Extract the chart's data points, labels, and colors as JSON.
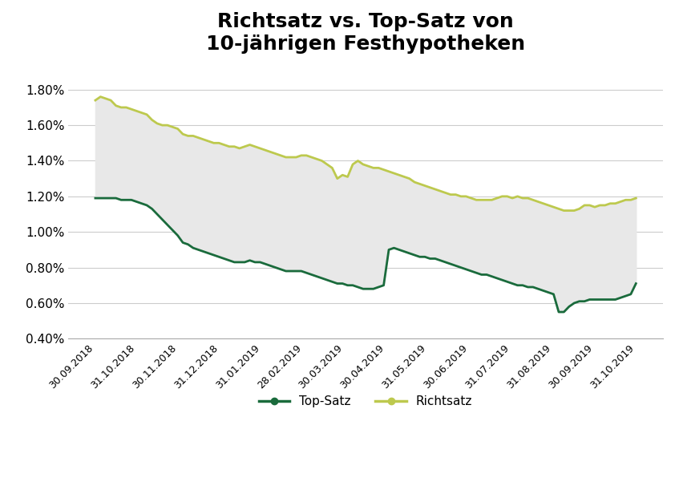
{
  "title": "Richtsatz vs. Top-Satz von\n10-jährigen Festhypotheken",
  "ylim": [
    0.004,
    0.019
  ],
  "yticks": [
    0.004,
    0.006,
    0.008,
    0.01,
    0.012,
    0.014,
    0.016,
    0.018
  ],
  "ytick_labels": [
    "0.40%",
    "0.60%",
    "0.80%",
    "1.00%",
    "1.20%",
    "1.40%",
    "1.60%",
    "1.80%"
  ],
  "xtick_labels": [
    "30.09.2018",
    "31.10.2018",
    "30.11.2018",
    "31.12.2018",
    "31.01.2019",
    "28.02.2019",
    "30.03.2019",
    "30.04.2019",
    "31.05.2019",
    "30.06.2019",
    "31.07.2019",
    "31.08.2019",
    "30.09.2019",
    "31.10.2019"
  ],
  "richtsatz_color": "#bdc94e",
  "topsatz_color": "#1a6b3c",
  "fill_color": "#e8e8e8",
  "background_color": "#ffffff",
  "legend_topsatz": "Top-Satz",
  "legend_richtsatz": "Richtsatz",
  "richtsatz": [
    0.0174,
    0.0176,
    0.0175,
    0.0174,
    0.0171,
    0.017,
    0.017,
    0.0169,
    0.0168,
    0.0167,
    0.0166,
    0.0163,
    0.0161,
    0.016,
    0.016,
    0.0159,
    0.0158,
    0.0155,
    0.0154,
    0.0154,
    0.0153,
    0.0152,
    0.0151,
    0.015,
    0.015,
    0.0149,
    0.0148,
    0.0148,
    0.0147,
    0.0148,
    0.0149,
    0.0148,
    0.0147,
    0.0146,
    0.0145,
    0.0144,
    0.0143,
    0.0142,
    0.0142,
    0.0142,
    0.0143,
    0.0143,
    0.0142,
    0.0141,
    0.014,
    0.0138,
    0.0136,
    0.013,
    0.0132,
    0.0131,
    0.0138,
    0.014,
    0.0138,
    0.0137,
    0.0136,
    0.0136,
    0.0135,
    0.0134,
    0.0133,
    0.0132,
    0.0131,
    0.013,
    0.0128,
    0.0127,
    0.0126,
    0.0125,
    0.0124,
    0.0123,
    0.0122,
    0.0121,
    0.0121,
    0.012,
    0.012,
    0.0119,
    0.0118,
    0.0118,
    0.0118,
    0.0118,
    0.0119,
    0.012,
    0.012,
    0.0119,
    0.012,
    0.0119,
    0.0119,
    0.0118,
    0.0117,
    0.0116,
    0.0115,
    0.0114,
    0.0113,
    0.0112,
    0.0112,
    0.0112,
    0.0113,
    0.0115,
    0.0115,
    0.0114,
    0.0115,
    0.0115,
    0.0116,
    0.0116,
    0.0117,
    0.0118,
    0.0118,
    0.0119
  ],
  "topsatz": [
    0.0119,
    0.0119,
    0.0119,
    0.0119,
    0.0119,
    0.0118,
    0.0118,
    0.0118,
    0.0117,
    0.0116,
    0.0115,
    0.0113,
    0.011,
    0.0107,
    0.0104,
    0.0101,
    0.0098,
    0.0094,
    0.0093,
    0.0091,
    0.009,
    0.0089,
    0.0088,
    0.0087,
    0.0086,
    0.0085,
    0.0084,
    0.0083,
    0.0083,
    0.0083,
    0.0084,
    0.0083,
    0.0083,
    0.0082,
    0.0081,
    0.008,
    0.0079,
    0.0078,
    0.0078,
    0.0078,
    0.0078,
    0.0077,
    0.0076,
    0.0075,
    0.0074,
    0.0073,
    0.0072,
    0.0071,
    0.0071,
    0.007,
    0.007,
    0.0069,
    0.0068,
    0.0068,
    0.0068,
    0.0069,
    0.007,
    0.009,
    0.0091,
    0.009,
    0.0089,
    0.0088,
    0.0087,
    0.0086,
    0.0086,
    0.0085,
    0.0085,
    0.0084,
    0.0083,
    0.0082,
    0.0081,
    0.008,
    0.0079,
    0.0078,
    0.0077,
    0.0076,
    0.0076,
    0.0075,
    0.0074,
    0.0073,
    0.0072,
    0.0071,
    0.007,
    0.007,
    0.0069,
    0.0069,
    0.0068,
    0.0067,
    0.0066,
    0.0065,
    0.0055,
    0.0055,
    0.0058,
    0.006,
    0.0061,
    0.0061,
    0.0062,
    0.0062,
    0.0062,
    0.0062,
    0.0062,
    0.0062,
    0.0063,
    0.0064,
    0.0065,
    0.0071
  ]
}
